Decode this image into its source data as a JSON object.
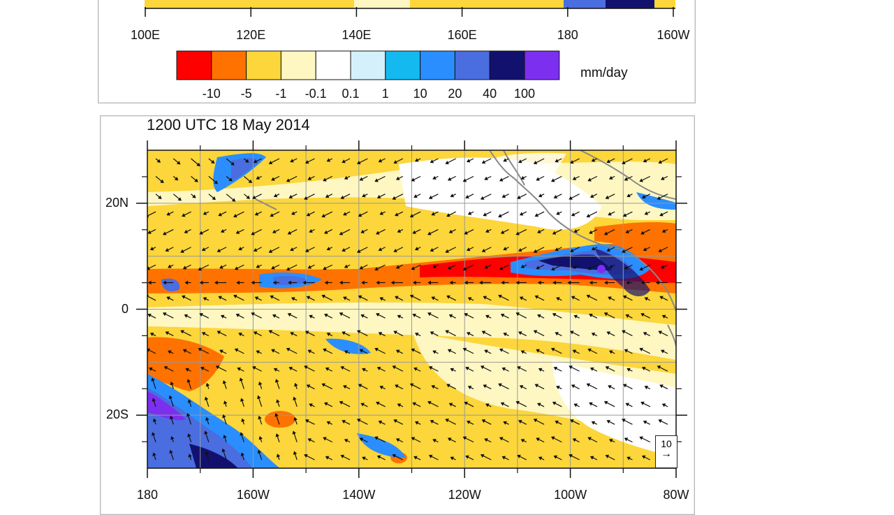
{
  "top_panel": {
    "lon_labels": [
      "100E",
      "120E",
      "140E",
      "160E",
      "180",
      "160W"
    ],
    "colorbar": {
      "colors": [
        "#ff0000",
        "#ff7200",
        "#fcd63a",
        "#fff7c2",
        "#ffffff",
        "#d4f1fb",
        "#14b9ef",
        "#2a8eff",
        "#4a6de0",
        "#12126e",
        "#7d2ff0"
      ],
      "labels": [
        "-10",
        "-5",
        "-1",
        "-0.1",
        "0.1",
        "1",
        "10",
        "20",
        "40",
        "100"
      ],
      "units": "mm/day"
    }
  },
  "bottom_panel": {
    "title": "1200 UTC 18 May 2014",
    "lon_labels": [
      "180",
      "160W",
      "140W",
      "120W",
      "100W",
      "80W"
    ],
    "lat_labels": [
      "20N",
      "0",
      "20S"
    ],
    "lat_values": [
      20,
      0,
      -20
    ],
    "lon_range": [
      -180,
      -80
    ],
    "lat_range": [
      -30,
      30
    ],
    "reference_vector": "10",
    "field": "precipitation minus evaporation with surface wind vectors"
  }
}
